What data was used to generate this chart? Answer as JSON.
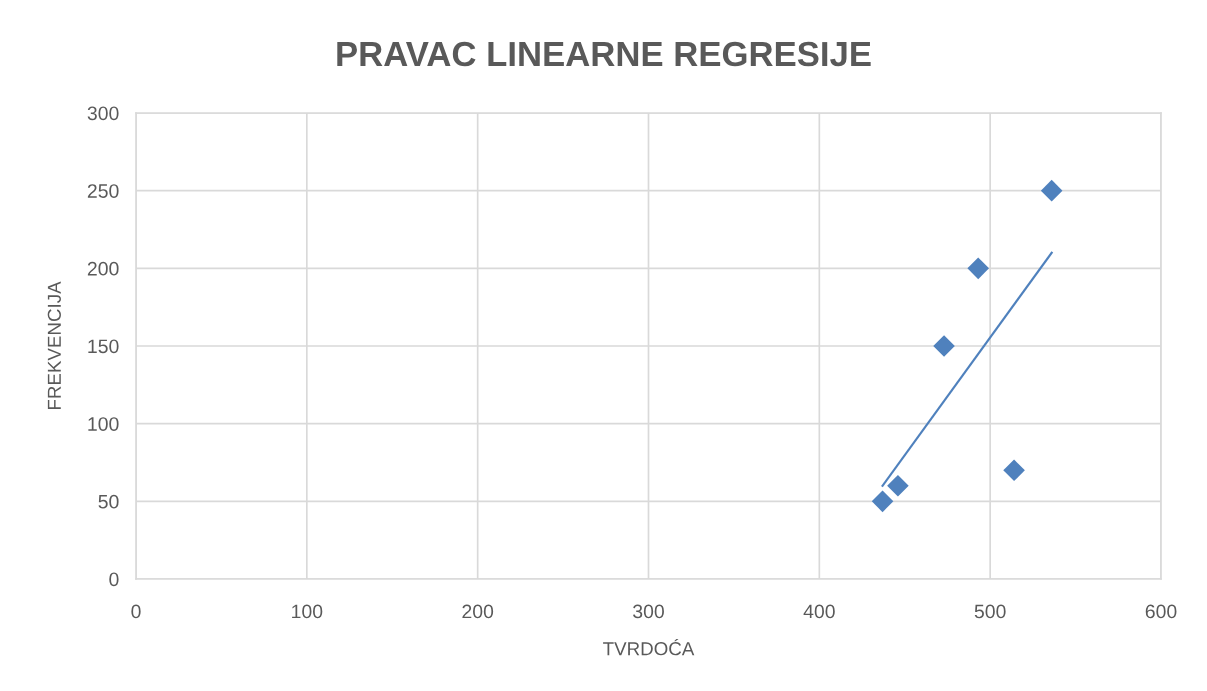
{
  "chart_data": {
    "type": "scatter",
    "title": "PRAVAC LINEARNE REGRESIJE",
    "xlabel": "TVRDOĆA",
    "ylabel": "FREKVENCIJA",
    "series": [
      {
        "color": "#4f81bd",
        "marker": "diamond",
        "x": [
          437,
          446,
          473,
          493,
          514,
          536
        ],
        "values": [
          50,
          60,
          150,
          200,
          70,
          250
        ]
      },
      {
        "type": "line",
        "color": "#4f81bd",
        "marker": "none",
        "line_style": "solid",
        "x": [
          437,
          536
        ],
        "values": [
          60,
          210
        ]
      }
    ],
    "xlim": [
      0,
      600
    ],
    "xticks": [
      0,
      100,
      200,
      300,
      400,
      500,
      600
    ],
    "ylim": [
      0,
      300
    ],
    "yticks": [
      0,
      50,
      100,
      150,
      200,
      250,
      300
    ],
    "grid": true
  }
}
